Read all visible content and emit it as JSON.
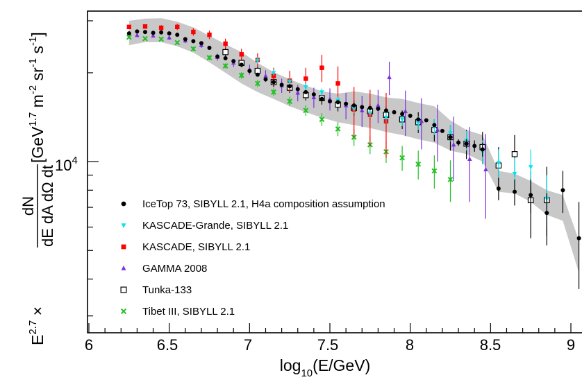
{
  "chart_data": {
    "type": "scatter",
    "xlabel_main": "log",
    "xlabel_sub": "10",
    "xlabel_rest": "(E/GeV)",
    "ylabel": {
      "prefix": "E",
      "prefix_sup": "2.7",
      "times": " × ",
      "frac_num": "dN",
      "frac_den": "dE dA dΩ dt",
      "unit_open": " [GeV",
      "unit_sup1": "1.7",
      "unit_m": " m",
      "unit_sup2": "-2",
      "unit_sr": " sr",
      "unit_sup3": "-1",
      "unit_s": " s",
      "unit_sup4": "-1",
      "unit_close": "]"
    },
    "xlim": [
      5.95,
      9.05
    ],
    "ylim_log": [
      3.42,
      4.51
    ],
    "y_scale": "log",
    "x_ticks": [
      {
        "value": 6,
        "label": "6"
      },
      {
        "value": 6.5,
        "label": "6.5"
      },
      {
        "value": 7,
        "label": "7"
      },
      {
        "value": 7.5,
        "label": "7.5"
      },
      {
        "value": 8,
        "label": "8"
      },
      {
        "value": 8.5,
        "label": "8.5"
      },
      {
        "value": 9,
        "label": "9"
      }
    ],
    "y_label_tick": {
      "base": "10",
      "exp": "4",
      "value": 10000
    },
    "legend_position": "bottom-left",
    "band": {
      "color": "#c8c8c8",
      "x": [
        6.25,
        6.35,
        6.45,
        6.55,
        6.65,
        6.75,
        6.85,
        6.95,
        7.05,
        7.15,
        7.25,
        7.35,
        7.45,
        7.55,
        7.65,
        7.75,
        7.85,
        7.95,
        8.05,
        8.15,
        8.25,
        8.35,
        8.45,
        8.55,
        8.65,
        8.75,
        8.85,
        8.95,
        9.05
      ],
      "lower": [
        24800,
        25400,
        25400,
        24600,
        23400,
        21700,
        20000,
        18400,
        17200,
        16300,
        15400,
        14700,
        14100,
        13600,
        13300,
        13000,
        12600,
        12300,
        11900,
        11600,
        10900,
        10600,
        10000,
        7900,
        7800,
        7300,
        6600,
        6300,
        4200
      ],
      "upper": [
        30000,
        30500,
        30600,
        29800,
        28500,
        26700,
        25000,
        23500,
        21600,
        20100,
        19000,
        18100,
        17300,
        17000,
        17300,
        17000,
        16500,
        16300,
        15800,
        15400,
        13800,
        12800,
        12300,
        9300,
        9100,
        8600,
        8000,
        7700,
        5400
      ]
    },
    "series": [
      {
        "name": "IceTop 73, SIBYLL 2.1, H4a composition assumption",
        "marker": "dot",
        "color": "#000000",
        "x": [
          6.25,
          6.3,
          6.35,
          6.4,
          6.45,
          6.5,
          6.55,
          6.6,
          6.65,
          6.7,
          6.75,
          6.8,
          6.85,
          6.9,
          6.95,
          7.0,
          7.05,
          7.1,
          7.15,
          7.2,
          7.25,
          7.3,
          7.35,
          7.4,
          7.45,
          7.5,
          7.55,
          7.6,
          7.65,
          7.7,
          7.75,
          7.8,
          7.85,
          7.9,
          7.95,
          8.0,
          8.05,
          8.1,
          8.15,
          8.2,
          8.25,
          8.3,
          8.35,
          8.4,
          8.45,
          8.55,
          8.65,
          8.75,
          8.85,
          8.95,
          9.05
        ],
        "y": [
          27200,
          27600,
          27500,
          27300,
          27400,
          27200,
          26900,
          26000,
          25600,
          25200,
          24300,
          22700,
          22400,
          21900,
          21300,
          20300,
          19700,
          19000,
          18600,
          18200,
          18000,
          17600,
          17200,
          16900,
          16300,
          16000,
          15900,
          15700,
          15500,
          15300,
          15200,
          15100,
          14900,
          14700,
          14500,
          14300,
          13900,
          13800,
          13300,
          12700,
          12100,
          11600,
          11500,
          11300,
          11000,
          8100,
          7900,
          7700,
          6700,
          8000,
          5500
        ],
        "yerr": [
          0,
          0,
          0,
          0,
          0,
          0,
          0,
          0,
          0,
          0,
          0,
          0,
          0,
          0,
          0,
          0,
          0,
          0,
          0,
          0,
          0,
          0,
          0,
          0,
          0,
          0,
          0,
          0,
          0,
          0,
          0,
          0,
          0,
          0,
          0,
          0,
          0,
          0,
          0,
          0,
          300,
          300,
          400,
          500,
          600,
          700,
          800,
          1000,
          1100,
          1300,
          1800
        ]
      },
      {
        "name": "KASCADE-Grande, SIBYLL 2.1",
        "marker": "triangle-down",
        "color": "#00e5ee",
        "x": [
          7.05,
          7.15,
          7.25,
          7.35,
          7.45,
          7.55,
          7.65,
          7.75,
          7.85,
          7.95,
          8.05,
          8.15,
          8.25,
          8.35,
          8.45,
          8.55,
          8.65,
          8.75,
          8.85
        ],
        "y": [
          22000,
          20000,
          18700,
          17900,
          17200,
          16100,
          15100,
          14600,
          14100,
          13900,
          13500,
          13100,
          12500,
          11800,
          10800,
          9900,
          9100,
          9600,
          7500
        ],
        "yerr": [
          600,
          500,
          500,
          500,
          500,
          500,
          500,
          500,
          600,
          700,
          700,
          800,
          800,
          900,
          1000,
          1100,
          1200,
          1400,
          1500
        ]
      },
      {
        "name": "KASCADE, SIBYLL 2.1",
        "marker": "square",
        "color": "#ff0000",
        "x": [
          6.25,
          6.35,
          6.45,
          6.55,
          6.65,
          6.75,
          6.85,
          6.95,
          7.05,
          7.15,
          7.25,
          7.35,
          7.45,
          7.55,
          7.65,
          7.75,
          7.85
        ],
        "y": [
          28600,
          28700,
          28400,
          28600,
          27500,
          26900,
          25100,
          23100,
          22100,
          19500,
          18800,
          19100,
          20800,
          18400,
          15000,
          14400,
          13700
        ],
        "yerr": [
          500,
          500,
          600,
          700,
          800,
          900,
          1000,
          1000,
          1200,
          1300,
          1500,
          1700,
          2200,
          2600,
          2900,
          3100,
          3400
        ]
      },
      {
        "name": "GAMMA 2008",
        "marker": "triangle-up",
        "color": "#7b2fe0",
        "x": [
          6.3,
          6.4,
          6.5,
          6.6,
          6.7,
          6.8,
          6.9,
          7.0,
          7.1,
          7.2,
          7.3,
          7.4,
          7.5,
          7.6,
          7.7,
          7.8,
          7.87,
          7.97,
          8.07,
          8.17,
          8.27,
          8.37,
          8.47
        ],
        "y": [
          26800,
          26700,
          26300,
          25700,
          24800,
          22600,
          21600,
          20500,
          19500,
          18100,
          17100,
          16500,
          16300,
          15500,
          14900,
          15500,
          19300,
          14800,
          13700,
          12800,
          11400,
          10200,
          9400
        ],
        "yerr": [
          400,
          400,
          500,
          500,
          500,
          600,
          700,
          800,
          900,
          1000,
          1100,
          1300,
          1400,
          1600,
          1800,
          2000,
          2500,
          2600,
          2700,
          2800,
          2800,
          2900,
          3000
        ]
      },
      {
        "name": "Tunka-133",
        "marker": "open-square",
        "color": "#000000",
        "x": [
          6.85,
          6.95,
          7.05,
          7.15,
          7.25,
          7.35,
          7.45,
          7.55,
          7.65,
          7.75,
          7.85,
          7.95,
          8.05,
          8.15,
          8.25,
          8.35,
          8.45,
          8.55,
          8.65,
          8.75,
          8.85
        ],
        "y": [
          23500,
          21600,
          20300,
          18600,
          17800,
          16800,
          16400,
          15600,
          15200,
          14800,
          14400,
          13900,
          13600,
          12800,
          12100,
          11500,
          11200,
          9700,
          10600,
          7400,
          7400
        ],
        "yerr": [
          800,
          700,
          700,
          700,
          700,
          700,
          800,
          800,
          900,
          900,
          1000,
          1000,
          1100,
          1100,
          1200,
          1300,
          1400,
          1500,
          1700,
          1900,
          2200
        ]
      },
      {
        "name": "Tibet III, SIBYLL 2.1",
        "marker": "cross",
        "color": "#22c022",
        "x": [
          6.25,
          6.35,
          6.45,
          6.55,
          6.65,
          6.75,
          6.85,
          6.95,
          7.05,
          7.15,
          7.25,
          7.35,
          7.45,
          7.55,
          7.65,
          7.75,
          7.85,
          7.95,
          8.05,
          8.15,
          8.25
        ],
        "y": [
          26400,
          26100,
          26000,
          25300,
          24100,
          22500,
          21100,
          19600,
          18400,
          17200,
          16000,
          14900,
          13900,
          12900,
          12100,
          11400,
          10800,
          10300,
          9800,
          9300,
          8700
        ],
        "yerr": [
          300,
          300,
          300,
          300,
          400,
          400,
          400,
          500,
          500,
          500,
          600,
          600,
          700,
          700,
          800,
          800,
          900,
          1000,
          1100,
          1200,
          1400
        ]
      }
    ]
  }
}
